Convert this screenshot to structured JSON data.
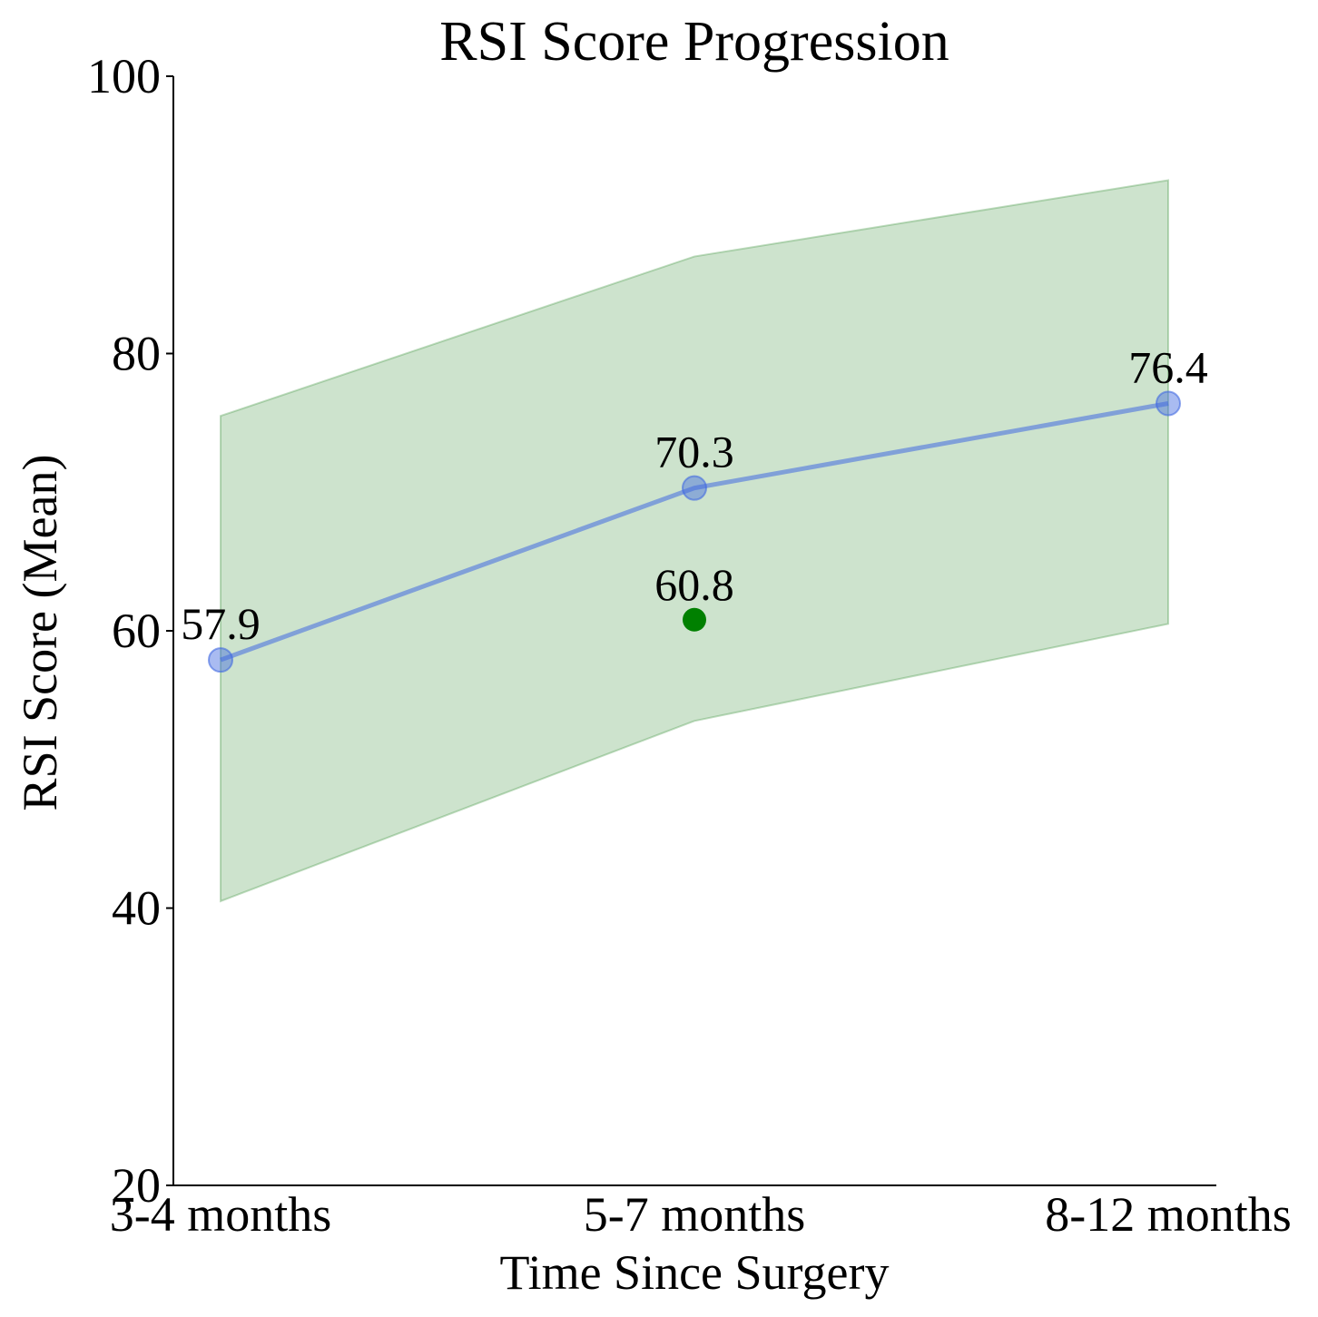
{
  "chart_data": {
    "type": "line",
    "title": "RSI Score Progression",
    "xlabel": "Time Since Surgery",
    "ylabel": "RSI Score (Mean)",
    "categories": [
      "3-4 months",
      "5-7 months",
      "8-12 months"
    ],
    "ylim": [
      20,
      100
    ],
    "yticks": [
      "20",
      "40",
      "60",
      "80",
      "100"
    ],
    "ytick_values": [
      20,
      40,
      60,
      80,
      100
    ],
    "grid": false,
    "legend": "none",
    "series": [
      {
        "values": [
          57.9,
          70.3,
          76.4
        ],
        "labels": [
          "57.9",
          "70.3",
          "76.4"
        ],
        "color": "#4169e1"
      }
    ],
    "band": {
      "lower": [
        40.5,
        53.5,
        60.5
      ],
      "upper": [
        75.5,
        87.0,
        92.5
      ],
      "color": "#2e8b2e"
    },
    "extra_points": [
      {
        "category": "5-7 months",
        "value": 60.8,
        "label": "60.8",
        "color": "#008000"
      }
    ]
  }
}
